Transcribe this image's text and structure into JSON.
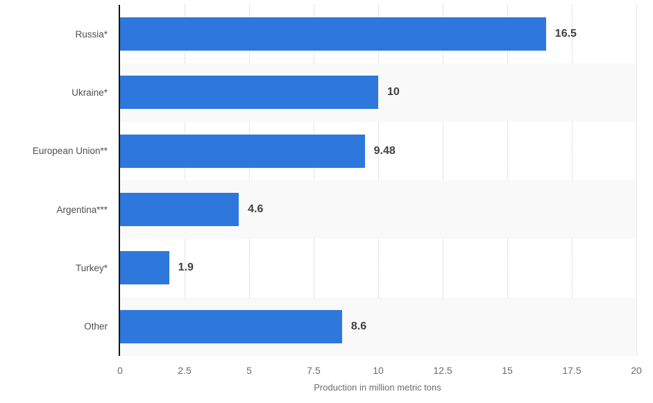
{
  "chart_data": {
    "type": "bar",
    "orientation": "horizontal",
    "title": "",
    "categories": [
      "Russia*",
      "Ukraine*",
      "European Union**",
      "Argentina***",
      "Turkey*",
      "Other"
    ],
    "values": [
      16.5,
      10,
      9.48,
      4.6,
      1.9,
      8.6
    ],
    "value_labels": [
      "16.5",
      "10",
      "9.48",
      "4.6",
      "1.9",
      "8.6"
    ],
    "xlabel": "Production in million metric tons",
    "ylabel": "",
    "xlim": [
      0,
      20
    ],
    "xtick_step": 2.5,
    "xticks": [
      "0",
      "2.5",
      "5",
      "7.5",
      "10",
      "12.5",
      "15",
      "17.5",
      "20"
    ],
    "grid": "vertical dotted gridlines at each x tick",
    "legend": "none",
    "bar_color": "#2d77dd",
    "band_color": "#f9f9f9",
    "axis_line_color": "#141414",
    "value_label_color": "#3f3f3f",
    "tick_label_color": "#6b6b6b",
    "banded_rows": [
      1,
      3,
      5
    ]
  }
}
